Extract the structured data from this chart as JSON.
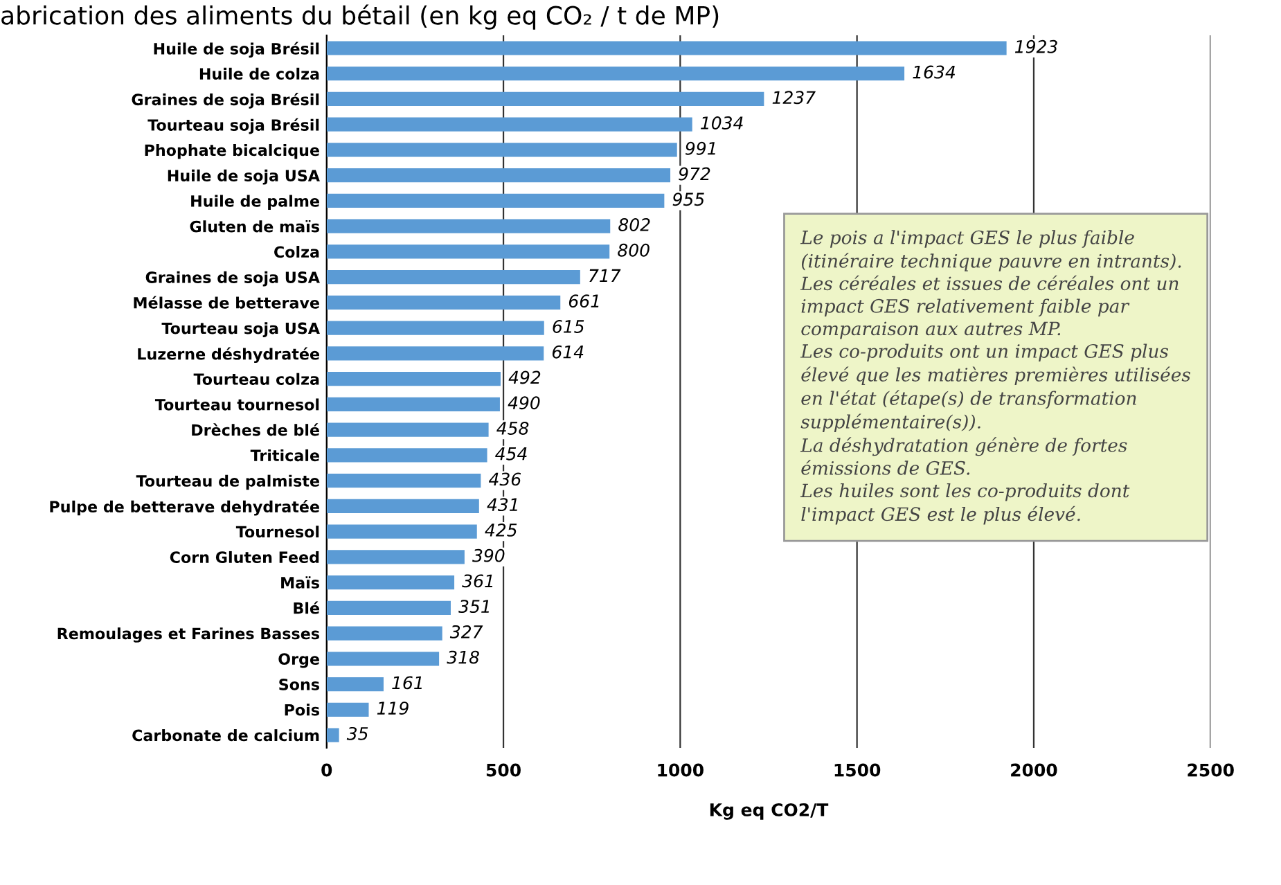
{
  "chart_data": {
    "type": "bar",
    "orientation": "horizontal",
    "title": "abrication des aliments du bétail (en kg eq CO₂ / t de MP)",
    "xlabel": "Kg eq CO2/T",
    "categories": [
      "Huile de soja Brésil",
      "Huile de colza",
      "Graines de soja Brésil",
      "Tourteau soja Brésil",
      "Phophate bicalcique",
      "Huile de soja USA",
      "Huile de palme",
      "Gluten de maïs",
      "Colza",
      "Graines de soja USA",
      "Mélasse de betterave",
      "Tourteau soja USA",
      "Luzerne déshydratée",
      "Tourteau colza",
      "Tourteau tournesol",
      "Drèches de blé",
      "Triticale",
      "Tourteau de palmiste",
      "Pulpe de betterave dehydratée",
      "Tournesol",
      "Corn Gluten Feed",
      "Maïs",
      "Blé",
      "Remoulages et Farines Basses",
      "Orge",
      "Sons",
      "Pois",
      "Carbonate de calcium"
    ],
    "values": [
      1923,
      1634,
      1237,
      1034,
      991,
      972,
      955,
      802,
      800,
      717,
      661,
      615,
      614,
      492,
      490,
      458,
      454,
      436,
      431,
      425,
      390,
      361,
      351,
      327,
      318,
      161,
      119,
      35
    ],
    "color": "#5b9bd5",
    "data_labels": true,
    "grid": "x",
    "xlim": [
      0,
      2500
    ],
    "xticks": [
      0,
      500,
      1000,
      1500,
      2000,
      2500
    ],
    "annotations": [
      "Le pois a l'impact GES le plus faible\n(itinéraire technique pauvre en intrants).\nLes céréales et issues de céréales ont un\nimpact GES relativement faible par\ncomparaison aux autres MP.\nLes co-produits ont un impact GES plus\nélevé que les matières premières utilisées\nen l'état (étape(s) de transformation\nsupplémentaire(s)).\nLa déshydratation génère de fortes\némissions de GES.\nLes huiles sont les co-produits dont\nl'impact GES est le plus élevé."
    ]
  }
}
